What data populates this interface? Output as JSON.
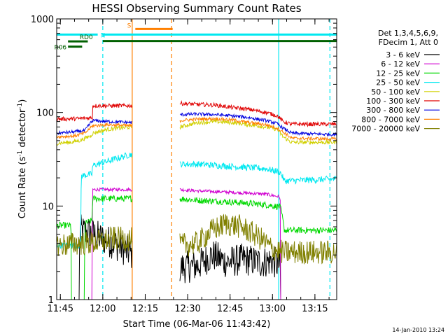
{
  "chart_data": {
    "type": "line",
    "title": "HESSI Observing Summary Count Rates",
    "xlabel": "Start Time (06-Mar-06 11:43:42)",
    "ylabel_main": "Count Rate (s",
    "ylabel_sup1": "-1",
    "ylabel_mid": " detector",
    "ylabel_sup2": "-1",
    "ylabel_end": ")",
    "footer": "14-Jan-2010 13:24",
    "x_axis": {
      "units": "minutes after 11:43:42",
      "range": [
        0,
        99
      ],
      "tick_values": [
        1.3,
        16.3,
        31.3,
        46.3,
        61.3,
        76.3,
        91.3
      ],
      "tick_labels": [
        "11:45",
        "12:00",
        "12:15",
        "12:30",
        "12:45",
        "13:00",
        "13:15"
      ]
    },
    "y_axis": {
      "scale": "log",
      "range": [
        1,
        1000
      ],
      "tick_values": [
        1,
        10,
        100,
        1000
      ],
      "tick_labels": [
        "1",
        "10",
        "100",
        "1000"
      ]
    },
    "legend": {
      "placement": "right",
      "header": [
        "Det 1,3,4,5,6,9,",
        "FDecim 1, Att 0"
      ]
    },
    "gaps": [
      [
        26.7,
        43.5
      ]
    ],
    "series": [
      {
        "name": "3 - 6 keV",
        "color": "#000000",
        "noise": 0.4,
        "points": [
          [
            0,
            1.0
          ],
          [
            8,
            1.0
          ],
          [
            8.2,
            5.5
          ],
          [
            13,
            5.0
          ],
          [
            16,
            4.5
          ],
          [
            20,
            4.0
          ],
          [
            26.7,
            3.0
          ],
          [
            43.5,
            2.2
          ],
          [
            50,
            2.3
          ],
          [
            55,
            3.0
          ],
          [
            60,
            2.5
          ],
          [
            66,
            2.7
          ],
          [
            72,
            2.5
          ],
          [
            76,
            2.6
          ],
          [
            79,
            2.3
          ],
          [
            79.2,
            1.0
          ],
          [
            99,
            1.0
          ]
        ]
      },
      {
        "name": "6 - 12 keV",
        "color": "#d000d0",
        "noise": 0.04,
        "points": [
          [
            0,
            1.0
          ],
          [
            12.5,
            1.0
          ],
          [
            12.7,
            15.0
          ],
          [
            26.7,
            15.0
          ],
          [
            43.5,
            15.0
          ],
          [
            50,
            14.5
          ],
          [
            58,
            14.2
          ],
          [
            66,
            13.8
          ],
          [
            74,
            13.4
          ],
          [
            79,
            12.5
          ],
          [
            79.2,
            1.0
          ],
          [
            99,
            1.0
          ]
        ]
      },
      {
        "name": "12 - 25 keV",
        "color": "#00d800",
        "noise": 0.08,
        "points": [
          [
            0,
            6.2
          ],
          [
            5,
            6.2
          ],
          [
            5.2,
            1.0
          ],
          [
            9.8,
            1.0
          ],
          [
            10,
            6.5
          ],
          [
            12.5,
            7.0
          ],
          [
            12.7,
            12.0
          ],
          [
            26.7,
            12.0
          ],
          [
            43.5,
            12.0
          ],
          [
            50,
            11.5
          ],
          [
            58,
            11.2
          ],
          [
            66,
            10.8
          ],
          [
            74,
            10.3
          ],
          [
            79,
            9.8
          ],
          [
            80.5,
            5.5
          ],
          [
            99,
            5.5
          ]
        ]
      },
      {
        "name": "25 - 50 keV",
        "color": "#00e8f0",
        "noise": 0.08,
        "points": [
          [
            0,
            3.8
          ],
          [
            8.5,
            3.8
          ],
          [
            8.7,
            21
          ],
          [
            12.5,
            22
          ],
          [
            12.7,
            27
          ],
          [
            18,
            30
          ],
          [
            26.7,
            36
          ],
          [
            43.5,
            28
          ],
          [
            50,
            28
          ],
          [
            58,
            27
          ],
          [
            66,
            26
          ],
          [
            74,
            25
          ],
          [
            79,
            23
          ],
          [
            80.5,
            18.5
          ],
          [
            99,
            19.5
          ]
        ]
      },
      {
        "name": "50 - 100 keV",
        "color": "#d0d000",
        "noise": 0.05,
        "points": [
          [
            0,
            47
          ],
          [
            5,
            48
          ],
          [
            8,
            50
          ],
          [
            12,
            56
          ],
          [
            12.7,
            60
          ],
          [
            18,
            66
          ],
          [
            26.7,
            70
          ],
          [
            43.5,
            70
          ],
          [
            50,
            78
          ],
          [
            56,
            80
          ],
          [
            62,
            78
          ],
          [
            68,
            74
          ],
          [
            74,
            70
          ],
          [
            78,
            66
          ],
          [
            80,
            55
          ],
          [
            83,
            48
          ],
          [
            99,
            48
          ]
        ]
      },
      {
        "name": "100 - 300 keV",
        "color": "#e00000",
        "noise": 0.05,
        "points": [
          [
            0,
            85
          ],
          [
            8,
            86
          ],
          [
            12.6,
            88
          ],
          [
            12.7,
            118
          ],
          [
            26.7,
            118
          ],
          [
            43.5,
            125
          ],
          [
            50,
            122
          ],
          [
            56,
            120
          ],
          [
            62,
            113
          ],
          [
            68,
            108
          ],
          [
            74,
            100
          ],
          [
            78,
            92
          ],
          [
            80,
            80
          ],
          [
            83,
            75
          ],
          [
            99,
            75
          ]
        ]
      },
      {
        "name": "300 - 800 keV",
        "color": "#0000e0",
        "noise": 0.04,
        "points": [
          [
            0,
            60
          ],
          [
            6,
            62
          ],
          [
            10,
            64
          ],
          [
            12.7,
            82
          ],
          [
            18,
            80
          ],
          [
            26.7,
            78
          ],
          [
            43.5,
            95
          ],
          [
            50,
            96
          ],
          [
            56,
            95
          ],
          [
            62,
            92
          ],
          [
            68,
            88
          ],
          [
            74,
            82
          ],
          [
            78,
            76
          ],
          [
            80,
            68
          ],
          [
            83,
            60
          ],
          [
            99,
            58
          ]
        ]
      },
      {
        "name": "800 - 7000 keV",
        "color": "#ff8000",
        "noise": 0.04,
        "points": [
          [
            0,
            55
          ],
          [
            6,
            56
          ],
          [
            10,
            60
          ],
          [
            12.7,
            72
          ],
          [
            18,
            74
          ],
          [
            26.7,
            72
          ],
          [
            43.5,
            82
          ],
          [
            50,
            85
          ],
          [
            56,
            86
          ],
          [
            62,
            83
          ],
          [
            68,
            78
          ],
          [
            74,
            74
          ],
          [
            78,
            68
          ],
          [
            80,
            62
          ],
          [
            83,
            53
          ],
          [
            99,
            52
          ]
        ]
      },
      {
        "name": "7000 - 20000 keV",
        "color": "#808000",
        "noise": 0.3,
        "points": [
          [
            0,
            3.8
          ],
          [
            8,
            4.0
          ],
          [
            12.7,
            4.0
          ],
          [
            20,
            4.5
          ],
          [
            26.7,
            4.4
          ],
          [
            43.5,
            3.8
          ],
          [
            50,
            4.0
          ],
          [
            55,
            5.5
          ],
          [
            60,
            6.5
          ],
          [
            65,
            6.0
          ],
          [
            72,
            4.5
          ],
          [
            76,
            3.5
          ],
          [
            80,
            3.2
          ],
          [
            99,
            3.2
          ]
        ]
      }
    ],
    "flag_lines": [
      {
        "label": "N",
        "color": "#00e8f0",
        "segments": [
          [
            0,
            14.5
          ],
          [
            16.3,
            99
          ]
        ],
        "y": 680
      },
      {
        "label": "S",
        "color": "#ff8000",
        "segments": [
          [
            27.8,
            41
          ]
        ],
        "y": 780
      },
      {
        "label": "",
        "color": "#006000",
        "segments": [
          [
            16.3,
            99
          ]
        ],
        "y": 580
      },
      {
        "label": "RD0",
        "color": "#006000",
        "segments": [
          [
            4,
            11
          ]
        ],
        "y": 575
      },
      {
        "label": "R06",
        "color": "#006000",
        "segments": [
          [
            4,
            9
          ]
        ],
        "y": 505
      }
    ],
    "vertical_markers": [
      {
        "x": 26.7,
        "color": "#ff8000",
        "style": "solid"
      },
      {
        "x": 40.6,
        "color": "#ff8000",
        "style": "dashed"
      },
      {
        "x": 78.5,
        "color": "#00e8f0",
        "style": "solid"
      },
      {
        "x": 16.3,
        "color": "#00e8f0",
        "style": "dashed"
      },
      {
        "x": 96.6,
        "color": "#00e8f0",
        "style": "dashed"
      }
    ]
  }
}
